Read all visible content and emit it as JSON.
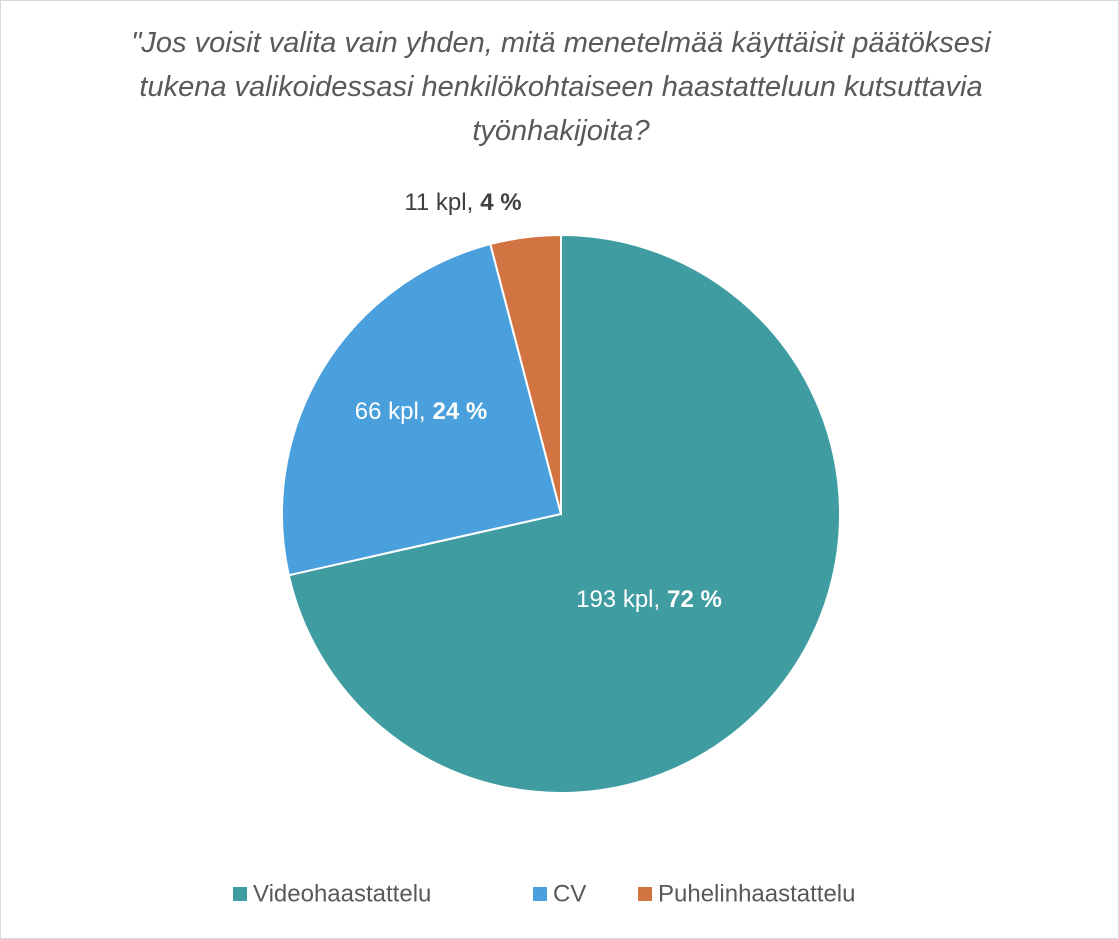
{
  "chart_data": {
    "type": "pie",
    "title": "\"Jos voisit valita vain yhden, mitä menetelmää käyttäisit päätöksesi tukena valikoidessasi henkilökohtaiseen haastatteluun kutsuttavia työnhakijoita?",
    "categories": [
      "Videohaastattelu",
      "CV",
      "Puhelinhaastattelu"
    ],
    "values": [
      193,
      66,
      11
    ],
    "value_labels": [
      "193 kpl,",
      "66 kpl,",
      "11 kpl,"
    ],
    "percent_labels": [
      "72 %",
      "24 %",
      "4 %"
    ],
    "colors": [
      "#3f9ca0",
      "#4a9fdd",
      "#d27442"
    ],
    "legend": "bottom"
  }
}
